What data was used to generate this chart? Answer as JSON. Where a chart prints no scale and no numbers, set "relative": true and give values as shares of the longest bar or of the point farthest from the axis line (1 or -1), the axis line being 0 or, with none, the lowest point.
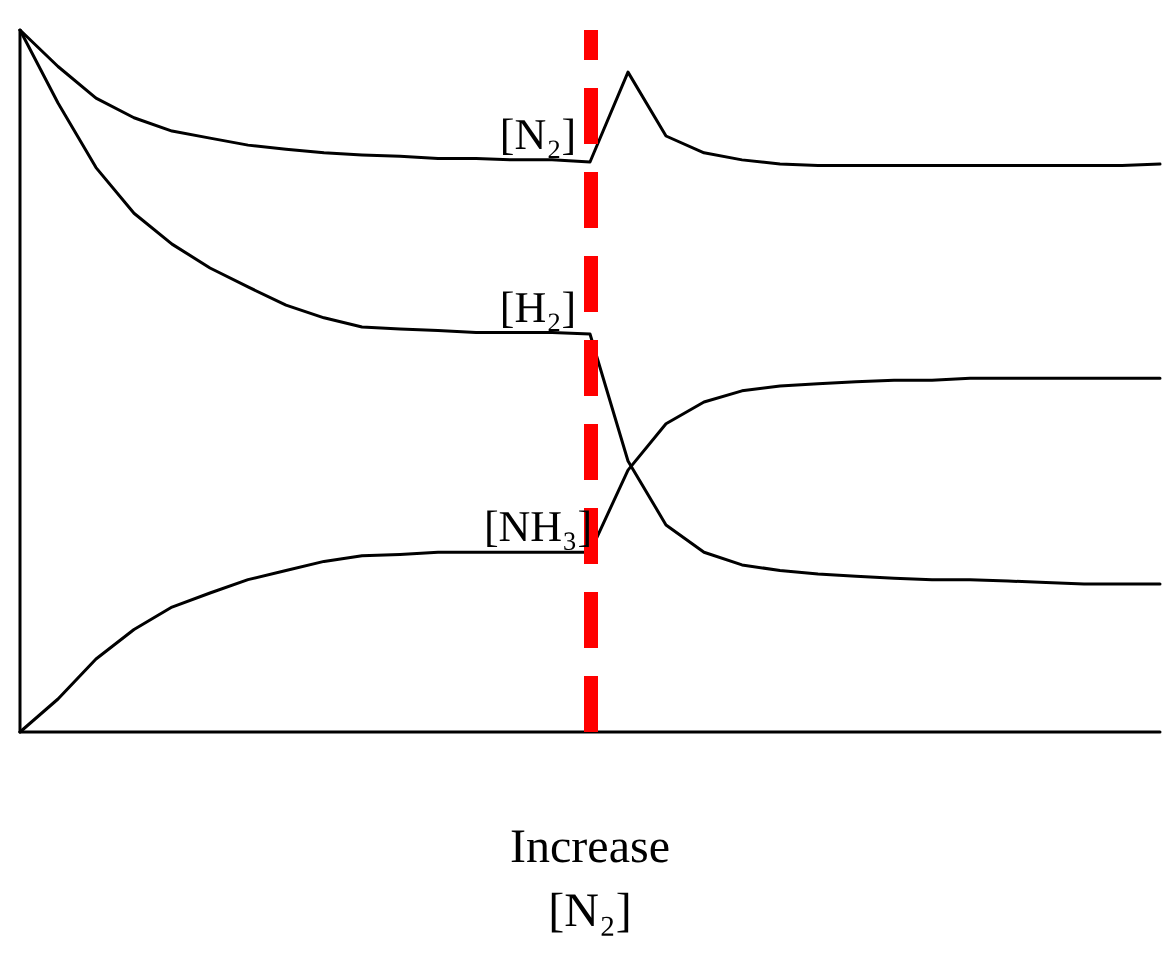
{
  "chart_data": {
    "type": "line",
    "relative": true,
    "categories": [
      null,
      null,
      null,
      null,
      null,
      null,
      null,
      null,
      null,
      null,
      null,
      null,
      null,
      null,
      null,
      null,
      null,
      null,
      null,
      null,
      null,
      null,
      null,
      null,
      null,
      null,
      null,
      null,
      null,
      null,
      null
    ],
    "series": [
      {
        "name": "[N₂]",
        "color": "#000000",
        "values": [
          1.0,
          0.948,
          0.903,
          0.875,
          0.856,
          0.846,
          0.836,
          0.83,
          0.825,
          0.822,
          0.82,
          0.817,
          0.817,
          0.815,
          0.815,
          0.812,
          0.94,
          0.849,
          0.825,
          0.815,
          0.809,
          0.807,
          0.807,
          0.807,
          0.807,
          0.807,
          0.807,
          0.807,
          0.807,
          0.807,
          0.809
        ]
      },
      {
        "name": "[H₂]",
        "color": "#000000",
        "values": [
          1.0,
          0.896,
          0.804,
          0.739,
          0.695,
          0.661,
          0.634,
          0.608,
          0.59,
          0.577,
          0.574,
          0.572,
          0.569,
          0.569,
          0.569,
          0.567,
          0.386,
          0.295,
          0.256,
          0.238,
          0.23,
          0.225,
          0.222,
          0.219,
          0.217,
          0.217,
          0.215,
          0.213,
          0.211,
          0.211,
          0.211
        ]
      },
      {
        "name": "[NH₃]",
        "color": "#000000",
        "values": [
          0,
          0.047,
          0.104,
          0.146,
          0.178,
          0.198,
          0.217,
          0.23,
          0.243,
          0.251,
          0.253,
          0.256,
          0.256,
          0.256,
          0.256,
          0.256,
          0.373,
          0.439,
          0.47,
          0.486,
          0.493,
          0.496,
          0.499,
          0.501,
          0.501,
          0.504,
          0.504,
          0.504,
          0.504,
          0.504,
          0.504
        ]
      }
    ],
    "xlabel": "Increase\n[N₂]",
    "grid": false,
    "legend": false,
    "line_style": "solid"
  }
}
